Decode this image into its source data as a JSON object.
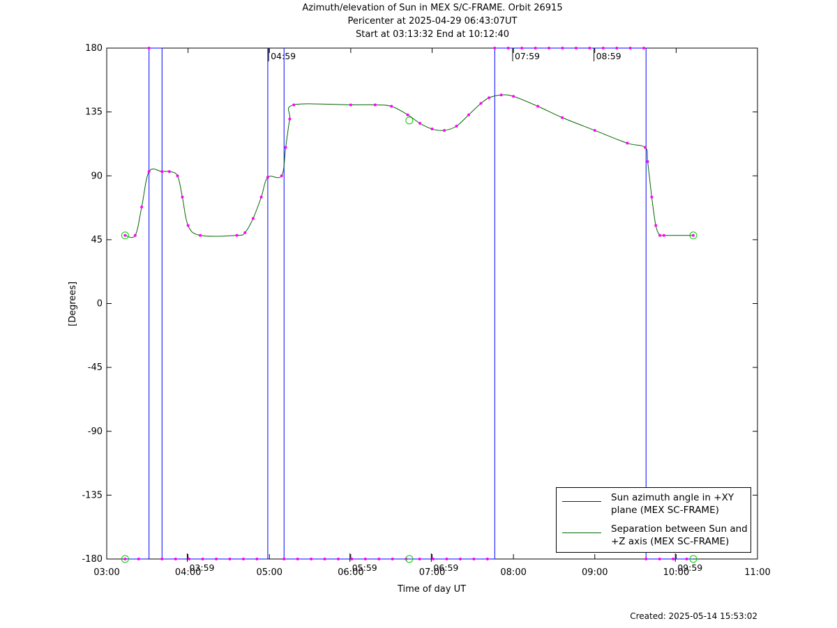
{
  "title": {
    "line1": "Azimuth/elevation of Sun in MEX S/C-FRAME.  Orbit 26915",
    "line2": "Pericenter at 2025-04-29 06:43:07UT",
    "line3": "Start at 03:13:32 End at 10:12:40"
  },
  "footer": {
    "created": "Created: 2025-05-14 15:53:02"
  },
  "colors": {
    "azimuth": "#0000ff",
    "separation": "#006400",
    "markers": "#ff00ff",
    "circles": "#00cc00",
    "axes": "#000000"
  },
  "chart_data": {
    "type": "line",
    "title": "Azimuth/elevation of Sun in MEX S/C-FRAME.  Orbit 26915",
    "xlabel": "Time of day UT",
    "ylabel": "[Degrees]",
    "xlim": [
      3.0,
      11.0
    ],
    "ylim": [
      -180,
      180
    ],
    "x_ticks": [
      "03:00",
      "04:00",
      "05:00",
      "06:00",
      "07:00",
      "08:00",
      "09:00",
      "10:00",
      "11:00"
    ],
    "y_ticks": [
      180,
      135,
      90,
      45,
      0,
      -45,
      -90,
      -135,
      -180
    ],
    "legend_position": "bottom-right",
    "series": [
      {
        "name": "Sun azimuth angle in +XY plane (MEX SC-FRAME)",
        "legend_lines": [
          "Sun azimuth angle in +XY",
          "plane (MEX SC-FRAME)"
        ],
        "segments": [
          {
            "x": [
              3.226,
              3.5
            ],
            "y": [
              -180,
              -180
            ]
          },
          {
            "x": [
              3.52,
              3.52
            ],
            "y": [
              -180,
              180
            ]
          },
          {
            "x": [
              3.52,
              3.68
            ],
            "y": [
              180,
              180
            ]
          },
          {
            "x": [
              3.68,
              3.68
            ],
            "y": [
              180,
              -180
            ]
          },
          {
            "x": [
              3.68,
              4.98
            ],
            "y": [
              -180,
              -180
            ]
          },
          {
            "x": [
              4.98,
              4.98
            ],
            "y": [
              -180,
              180
            ]
          },
          {
            "x": [
              5.18,
              5.18
            ],
            "y": [
              180,
              -180
            ]
          },
          {
            "x": [
              5.18,
              7.77
            ],
            "y": [
              -180,
              -180
            ]
          },
          {
            "x": [
              7.77,
              7.77
            ],
            "y": [
              -180,
              180
            ]
          },
          {
            "x": [
              7.77,
              9.63
            ],
            "y": [
              180,
              180
            ]
          },
          {
            "x": [
              9.63,
              9.63
            ],
            "y": [
              180,
              -180
            ]
          },
          {
            "x": [
              9.63,
              10.211
            ],
            "y": [
              -180,
              -180
            ]
          }
        ]
      },
      {
        "name": "Separation between Sun and +Z axis (MEX SC-FRAME)",
        "legend_lines": [
          "Separation between Sun and",
          "+Z axis (MEX SC-FRAME)"
        ],
        "x": [
          3.226,
          3.35,
          3.43,
          3.52,
          3.68,
          3.77,
          3.87,
          3.93,
          4.0,
          4.15,
          4.6,
          4.7,
          4.8,
          4.9,
          4.98,
          5.15,
          5.2,
          5.25,
          5.3,
          6.0,
          6.3,
          6.5,
          6.7,
          6.85,
          7.0,
          7.15,
          7.3,
          7.45,
          7.6,
          7.7,
          7.85,
          8.0,
          8.3,
          8.6,
          9.0,
          9.4,
          9.62,
          9.65,
          9.7,
          9.75,
          9.8,
          9.85,
          10.211
        ],
        "y": [
          48,
          48,
          68,
          93,
          93,
          93,
          90,
          75,
          55,
          48,
          48,
          50,
          60,
          75,
          89,
          90,
          110,
          130,
          140,
          140,
          140,
          139,
          133,
          127,
          123,
          122,
          125,
          133,
          141,
          145,
          147,
          146,
          139,
          131,
          122,
          113,
          110,
          100,
          75,
          55,
          48,
          48,
          48
        ]
      }
    ],
    "tick_labels": [
      {
        "x": 3.99,
        "y": -180,
        "text": "03:59"
      },
      {
        "x": 4.99,
        "y": 180,
        "text": "04:59"
      },
      {
        "x": 5.99,
        "y": -180,
        "text": "05:59"
      },
      {
        "x": 6.99,
        "y": -180,
        "text": "06:59"
      },
      {
        "x": 7.99,
        "y": 180,
        "text": "07:59"
      },
      {
        "x": 8.99,
        "y": 180,
        "text": "08:59"
      },
      {
        "x": 9.99,
        "y": -180,
        "text": "09:59"
      }
    ]
  }
}
